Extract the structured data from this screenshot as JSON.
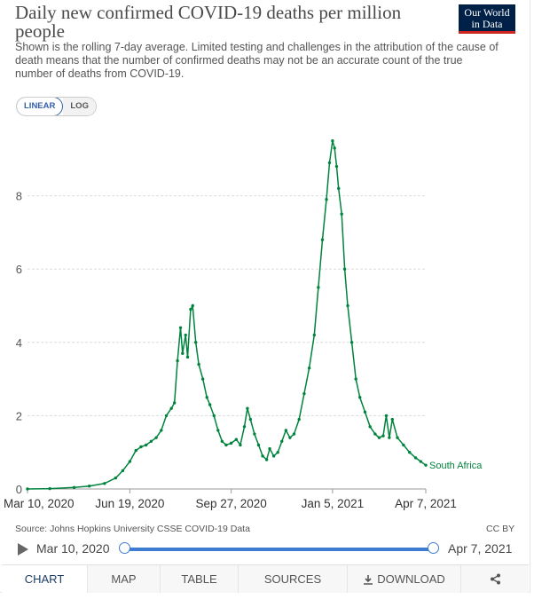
{
  "header": {
    "title": "Daily new confirmed COVID-19 deaths per million people",
    "subtitle": "Shown is the rolling 7-day average. Limited testing and challenges in the attribution of the cause of death means that the number of confirmed deaths may not be an accurate count of the true number of deaths from COVID-19.",
    "logo_line1": "Our World",
    "logo_line2": "in Data"
  },
  "scale_toggle": {
    "linear_label": "LINEAR",
    "log_label": "LOG",
    "selected": "LINEAR"
  },
  "chart_data": {
    "type": "line",
    "title": "Daily new confirmed COVID-19 deaths per million people",
    "x_ticks": [
      "Mar 10, 2020",
      "Jun 19, 2020",
      "Sep 27, 2020",
      "Jan 5, 2021",
      "Apr 7, 2021"
    ],
    "y_ticks": [
      "0",
      "2",
      "4",
      "6",
      "8"
    ],
    "ylim": [
      0,
      10
    ],
    "x_range": [
      "2020-03-10",
      "2021-04-07"
    ],
    "grid": "horizontal dashed",
    "series": [
      {
        "name": "South Africa",
        "color": "#00843d",
        "points": [
          [
            "2020-03-10",
            0
          ],
          [
            "2020-04-01",
            0.01
          ],
          [
            "2020-04-25",
            0.04
          ],
          [
            "2020-05-10",
            0.08
          ],
          [
            "2020-05-25",
            0.15
          ],
          [
            "2020-06-05",
            0.3
          ],
          [
            "2020-06-12",
            0.5
          ],
          [
            "2020-06-19",
            0.75
          ],
          [
            "2020-06-25",
            1.05
          ],
          [
            "2020-06-30",
            1.15
          ],
          [
            "2020-07-05",
            1.2
          ],
          [
            "2020-07-10",
            1.3
          ],
          [
            "2020-07-15",
            1.4
          ],
          [
            "2020-07-20",
            1.6
          ],
          [
            "2020-07-25",
            2.0
          ],
          [
            "2020-07-30",
            2.2
          ],
          [
            "2020-08-02",
            2.35
          ],
          [
            "2020-08-05",
            3.5
          ],
          [
            "2020-08-08",
            4.4
          ],
          [
            "2020-08-10",
            3.7
          ],
          [
            "2020-08-13",
            4.2
          ],
          [
            "2020-08-15",
            3.6
          ],
          [
            "2020-08-18",
            4.9
          ],
          [
            "2020-08-20",
            5.0
          ],
          [
            "2020-08-23",
            4.0
          ],
          [
            "2020-08-26",
            3.4
          ],
          [
            "2020-08-30",
            3.0
          ],
          [
            "2020-09-03",
            2.5
          ],
          [
            "2020-09-06",
            2.3
          ],
          [
            "2020-09-10",
            2.0
          ],
          [
            "2020-09-14",
            1.6
          ],
          [
            "2020-09-18",
            1.3
          ],
          [
            "2020-09-22",
            1.2
          ],
          [
            "2020-09-27",
            1.25
          ],
          [
            "2020-10-02",
            1.35
          ],
          [
            "2020-10-06",
            1.2
          ],
          [
            "2020-10-10",
            1.7
          ],
          [
            "2020-10-13",
            2.2
          ],
          [
            "2020-10-16",
            1.9
          ],
          [
            "2020-10-20",
            1.5
          ],
          [
            "2020-10-24",
            1.2
          ],
          [
            "2020-10-28",
            0.9
          ],
          [
            "2020-11-01",
            0.8
          ],
          [
            "2020-11-04",
            1.1
          ],
          [
            "2020-11-08",
            0.9
          ],
          [
            "2020-11-12",
            1.0
          ],
          [
            "2020-11-16",
            1.3
          ],
          [
            "2020-11-20",
            1.6
          ],
          [
            "2020-11-24",
            1.4
          ],
          [
            "2020-11-28",
            1.5
          ],
          [
            "2020-12-03",
            1.9
          ],
          [
            "2020-12-08",
            2.6
          ],
          [
            "2020-12-13",
            3.3
          ],
          [
            "2020-12-18",
            4.2
          ],
          [
            "2020-12-22",
            5.5
          ],
          [
            "2020-12-26",
            6.8
          ],
          [
            "2020-12-30",
            7.9
          ],
          [
            "2021-01-02",
            8.9
          ],
          [
            "2021-01-05",
            9.5
          ],
          [
            "2021-01-07",
            9.3
          ],
          [
            "2021-01-09",
            8.8
          ],
          [
            "2021-01-11",
            8.2
          ],
          [
            "2021-01-14",
            7.5
          ],
          [
            "2021-01-17",
            6.0
          ],
          [
            "2021-01-20",
            5.0
          ],
          [
            "2021-01-24",
            4.0
          ],
          [
            "2021-01-28",
            3.0
          ],
          [
            "2021-02-01",
            2.5
          ],
          [
            "2021-02-06",
            2.1
          ],
          [
            "2021-02-11",
            1.7
          ],
          [
            "2021-02-16",
            1.5
          ],
          [
            "2021-02-20",
            1.4
          ],
          [
            "2021-02-24",
            1.45
          ],
          [
            "2021-02-27",
            2.0
          ],
          [
            "2021-03-02",
            1.4
          ],
          [
            "2021-03-05",
            1.9
          ],
          [
            "2021-03-10",
            1.4
          ],
          [
            "2021-03-16",
            1.2
          ],
          [
            "2021-03-22",
            1.0
          ],
          [
            "2021-03-28",
            0.85
          ],
          [
            "2021-04-02",
            0.75
          ],
          [
            "2021-04-07",
            0.65
          ]
        ]
      }
    ]
  },
  "source_text": "Source: Johns Hopkins University CSSE COVID-19 Data",
  "license": "CC BY",
  "timeline": {
    "start": "Mar 10, 2020",
    "end": "Apr 7, 2021"
  },
  "tabs": {
    "chart": "CHART",
    "map": "MAP",
    "table": "TABLE",
    "sources": "SOURCES",
    "download": "DOWNLOAD"
  },
  "icons": {
    "download": "download-icon",
    "share": "share-icon",
    "play": "play-icon"
  }
}
